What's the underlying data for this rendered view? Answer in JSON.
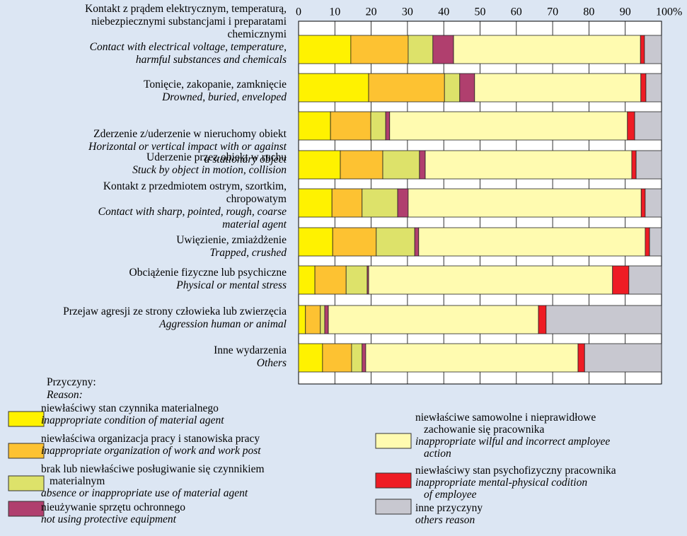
{
  "chart_data": {
    "type": "stacked-barh",
    "categories": [
      "Kontakt z prądem elektrycznym, temperaturą,\nniebezpiecznymi substancjami i preparatami\nchemicznymi",
      "Tonięcie, zakopanie, zamknięcie",
      "Zderzenie z/uderzenie w nieruchomy obiekt",
      "Uderzenie przez obiekt w ruchu",
      "Kontakt z przedmiotem ostrym, szortkim,\nchropowatym",
      "Uwięzienie, zmiażdżenie",
      "Obciążenie fizyczne lub psychiczne",
      "Przejaw agresji ze strony człowieka lub zwierzęcia",
      "Inne wydarzenia"
    ],
    "categories_en": [
      "Contact with electrical voltage, temperature,\nharmful substances and chemicals",
      "Drowned, buried, enveloped",
      "Horizontal or vertical impact with or against\na stationary object",
      "Stuck by object in motion, collision",
      "Contact with sharp, pointed, rough, coarse\nmaterial agent",
      "Trapped, crushed",
      "Physical or mental stress",
      "Aggression human or animal",
      "Others"
    ],
    "xlim": [
      0,
      100
    ],
    "xticks": [
      0,
      10,
      20,
      30,
      40,
      50,
      60,
      70,
      80,
      90,
      {
        "value": 100,
        "label": "100%"
      }
    ],
    "grid": true,
    "legend_title": "Przyczyny:",
    "legend_title_en": "Reason:",
    "series": [
      {
        "name": "niewłaściwy stan czynnika materialnego",
        "name_en": "inappropriate condition of material agent",
        "color": "#fff200",
        "values": [
          14.4,
          19.3,
          8.8,
          11.5,
          9.2,
          9.4,
          4.5,
          1.9,
          6.6
        ]
      },
      {
        "name": "niewłaściwa organizacja pracy i stanowiska pracy",
        "name_en": "inappropriate organization of work and work post",
        "color": "#fdc232",
        "values": [
          15.8,
          20.9,
          11.1,
          11.7,
          8.3,
          12.0,
          8.6,
          4.1,
          8.0
        ]
      },
      {
        "name": "brak lub niewłaściwe posługiwanie się czynnikiem\nmaterialnym",
        "name_en": "absence or inappropriate use of material agent",
        "color": "#dde26a",
        "values": [
          6.8,
          4.2,
          4.1,
          10.1,
          9.8,
          10.6,
          5.8,
          1.2,
          2.9
        ]
      },
      {
        "name": "nieużywanie sprzętu ochronnego",
        "name_en": "not using protective equipment",
        "color": "#b03f6e",
        "values": [
          5.7,
          4.1,
          1.1,
          1.6,
          2.9,
          1.1,
          0.4,
          1.0,
          1.0
        ]
      },
      {
        "name": "niewłaściwe samowolne i nieprawidłowe\nzachowanie się pracownika",
        "name_en": "inappropriate wilful and incorrect amployee\naction",
        "color": "#fffbb0",
        "values": [
          51.5,
          45.8,
          65.5,
          56.9,
          64.2,
          62.4,
          67.2,
          57.9,
          58.5
        ]
      },
      {
        "name": "niewłaściwy stan psychofizyczny pracownika",
        "name_en": "inappropriate mental-physical codition\nof employee",
        "color": "#ee1c24",
        "values": [
          1.1,
          1.4,
          2.0,
          1.2,
          1.1,
          1.2,
          4.5,
          2.1,
          1.8
        ]
      },
      {
        "name": "inne przyczyny",
        "name_en": "others reason",
        "color": "#c8c8d0",
        "values": [
          4.7,
          4.3,
          7.4,
          7.0,
          4.5,
          3.3,
          9.0,
          31.8,
          21.2
        ]
      }
    ]
  }
}
